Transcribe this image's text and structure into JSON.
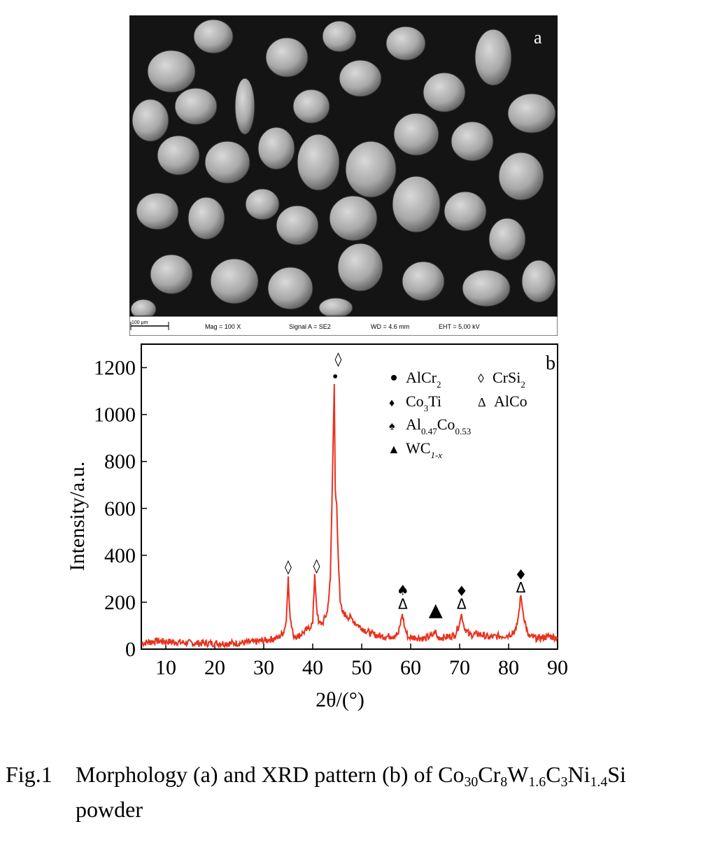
{
  "panel_a": {
    "label": "a",
    "image_desc": "SEM micrograph of spherical and ellipsoidal powder particles",
    "scale_bar": "100 μm",
    "info": {
      "mag": "Mag =   100 X",
      "signal": "Signal A = SE2",
      "wd": "WD = 4.6 mm",
      "eht": "EHT = 5.00 kV"
    }
  },
  "panel_b": {
    "label": "b",
    "legend": {
      "alcr2": "AlCr",
      "alcr2_sub": "2",
      "crsi2": "CrSi",
      "crsi2_sub": "2",
      "co3ti_a": "Co",
      "co3ti_sub": "3",
      "co3ti_b": "Ti",
      "alco": "AlCo",
      "al047_a": "Al",
      "al047_sub1": "0.47",
      "al047_b": "Co",
      "al047_sub2": "0.53",
      "wc_a": "WC",
      "wc_sub": "1-x"
    }
  },
  "chart_data": {
    "type": "line",
    "xlabel": "2θ/(°)",
    "ylabel": "Intensity/a.u.",
    "xlim": [
      5,
      90
    ],
    "ylim": [
      0,
      1300
    ],
    "xticks": [
      10,
      20,
      30,
      40,
      50,
      60,
      70,
      80,
      90
    ],
    "yticks": [
      0,
      200,
      400,
      600,
      800,
      1000,
      1200
    ],
    "color": "#e8321e",
    "series": [
      {
        "x": [
          5,
          8,
          12,
          16,
          20,
          24,
          28,
          31,
          33,
          34,
          34.6,
          35,
          35.4,
          36,
          37,
          38,
          39,
          40,
          40.4,
          40.8,
          41.2,
          42,
          43,
          43.6,
          44,
          44.4,
          44.6,
          44.9,
          45.2,
          45.6,
          46,
          47,
          48,
          49,
          50,
          52,
          54,
          56,
          57.5,
          58.3,
          58.8,
          59.5,
          61,
          63,
          64.6,
          65,
          65.4,
          67,
          69,
          70,
          70.4,
          70.9,
          72,
          74,
          76,
          78,
          80,
          81.5,
          82,
          82.5,
          83,
          84,
          86,
          88,
          90
        ],
        "y": [
          25,
          35,
          30,
          25,
          25,
          25,
          30,
          40,
          50,
          70,
          120,
          310,
          130,
          60,
          55,
          70,
          85,
          110,
          320,
          180,
          110,
          110,
          160,
          300,
          700,
          1130,
          680,
          620,
          400,
          200,
          160,
          140,
          130,
          105,
          90,
          65,
          55,
          55,
          65,
          150,
          90,
          50,
          50,
          45,
          60,
          80,
          50,
          50,
          60,
          110,
          150,
          95,
          60,
          65,
          50,
          55,
          60,
          80,
          140,
          230,
          150,
          55,
          45,
          55,
          50
        ]
      }
    ],
    "peak_markers": [
      {
        "x": 35,
        "y": 355,
        "sym": "◊"
      },
      {
        "x": 40.8,
        "y": 360,
        "sym": "◊"
      },
      {
        "x": 44.6,
        "y": 1165,
        "sym": "•"
      },
      {
        "x": 45.2,
        "y": 1240,
        "sym": "◊"
      },
      {
        "x": 58.4,
        "y": 255,
        "sym": "♠"
      },
      {
        "x": 58.4,
        "y": 195,
        "sym": "Δ"
      },
      {
        "x": 65.1,
        "y": 165,
        "sym": "▲"
      },
      {
        "x": 70.4,
        "y": 250,
        "sym": "♦"
      },
      {
        "x": 70.4,
        "y": 195,
        "sym": "Δ"
      },
      {
        "x": 82.5,
        "y": 320,
        "sym": "♦"
      },
      {
        "x": 82.5,
        "y": 265,
        "sym": "Δ"
      }
    ]
  },
  "caption": {
    "fig_num": "Fig.1",
    "text_pre": "Morphology (a) and XRD pattern (b) of Co",
    "sub1": "30",
    "t2": "Cr",
    "sub2": "8",
    "t3": "W",
    "sub3": "1.6",
    "t4": "C",
    "sub4": "3",
    "t5": "Ni",
    "sub5": "1.4",
    "t6": "Si",
    "line2": "powder"
  }
}
